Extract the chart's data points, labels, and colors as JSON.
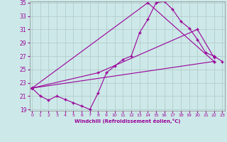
{
  "xlabel": "Windchill (Refroidissement éolien,°C)",
  "bg_color": "#cde8e8",
  "line_color": "#990099",
  "grid_color": "#b0c8c8",
  "xmin": 0,
  "xmax": 23,
  "ymin": 19,
  "ymax": 35,
  "yticks": [
    19,
    21,
    23,
    25,
    27,
    29,
    31,
    33,
    35
  ],
  "xticks": [
    0,
    1,
    2,
    3,
    4,
    5,
    6,
    7,
    8,
    9,
    10,
    11,
    12,
    13,
    14,
    15,
    16,
    17,
    18,
    19,
    20,
    21,
    22,
    23
  ],
  "line1_x": [
    0,
    1,
    2,
    3,
    4,
    5,
    6,
    7,
    8,
    9,
    10,
    11,
    12,
    13,
    14,
    15,
    16,
    17,
    18,
    19,
    20,
    21,
    22,
    23
  ],
  "line1_y": [
    22.2,
    21.0,
    20.4,
    21.0,
    20.5,
    20.0,
    19.5,
    19.0,
    21.5,
    24.5,
    25.5,
    26.5,
    27.0,
    30.5,
    32.5,
    35.0,
    35.2,
    34.0,
    32.2,
    31.2,
    29.5,
    27.5,
    27.0,
    26.2
  ],
  "line2_x": [
    0,
    14,
    22
  ],
  "line2_y": [
    22.2,
    35.0,
    26.2
  ],
  "line3_x": [
    0,
    8,
    20,
    22
  ],
  "line3_y": [
    22.2,
    24.5,
    31.0,
    26.8
  ],
  "line4_x": [
    0,
    22
  ],
  "line4_y": [
    22.2,
    26.2
  ]
}
